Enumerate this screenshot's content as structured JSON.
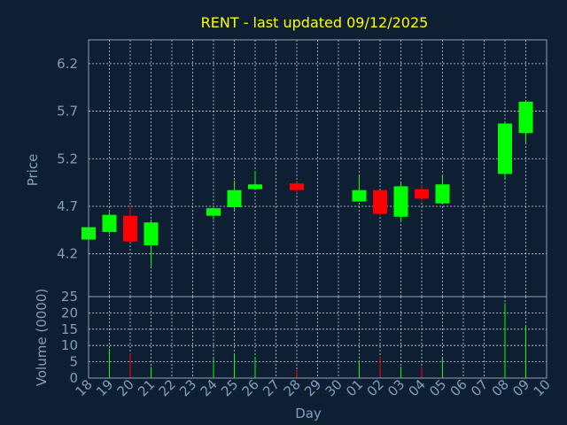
{
  "chart_data": [
    {
      "type": "candlestick",
      "title": "RENT - last updated 09/12/2025",
      "ylabel": "Price",
      "ylim": [
        3.75,
        6.45
      ],
      "yticks": [
        4.2,
        4.7,
        5.2,
        5.7,
        6.2
      ],
      "grid": true,
      "up_color": "#00ff00",
      "down_color": "#ff0000",
      "candles": [
        {
          "day": "18",
          "open": 4.35,
          "high": 4.49,
          "low": 4.33,
          "close": 4.48
        },
        {
          "day": "19",
          "open": 4.43,
          "high": 4.64,
          "low": 4.41,
          "close": 4.61
        },
        {
          "day": "20",
          "open": 4.6,
          "high": 4.71,
          "low": 4.32,
          "close": 4.33
        },
        {
          "day": "21",
          "open": 4.29,
          "high": 4.56,
          "low": 4.07,
          "close": 4.53
        },
        {
          "day": "24",
          "open": 4.6,
          "high": 4.7,
          "low": 4.56,
          "close": 4.68
        },
        {
          "day": "25",
          "open": 4.69,
          "high": 4.97,
          "low": 4.66,
          "close": 4.87
        },
        {
          "day": "26",
          "open": 4.88,
          "high": 5.07,
          "low": 4.88,
          "close": 4.93
        },
        {
          "day": "28",
          "open": 4.94,
          "high": 4.95,
          "low": 4.84,
          "close": 4.87
        },
        {
          "day": "01",
          "open": 4.75,
          "high": 5.02,
          "low": 4.75,
          "close": 4.87
        },
        {
          "day": "02",
          "open": 4.87,
          "high": 4.87,
          "low": 4.6,
          "close": 4.62
        },
        {
          "day": "03",
          "open": 4.59,
          "high": 4.94,
          "low": 4.54,
          "close": 4.91
        },
        {
          "day": "04",
          "open": 4.88,
          "high": 4.93,
          "low": 4.75,
          "close": 4.78
        },
        {
          "day": "05",
          "open": 4.73,
          "high": 5.03,
          "low": 4.72,
          "close": 4.93
        },
        {
          "day": "08",
          "open": 5.04,
          "high": 5.59,
          "low": 4.99,
          "close": 5.57
        },
        {
          "day": "09",
          "open": 5.47,
          "high": 5.81,
          "low": 5.37,
          "close": 5.8
        }
      ]
    },
    {
      "type": "bar",
      "xlabel": "Day",
      "ylabel": "Volume (0000)",
      "ylim": [
        0,
        25
      ],
      "yticks": [
        0,
        5,
        10,
        15,
        20,
        25
      ],
      "grid": true,
      "categories": [
        "18",
        "19",
        "20",
        "21",
        "22",
        "23",
        "24",
        "25",
        "26",
        "27",
        "28",
        "29",
        "30",
        "01",
        "02",
        "03",
        "04",
        "05",
        "06",
        "07",
        "08",
        "09",
        "10"
      ],
      "volumes": [
        {
          "day": "19",
          "value": 9,
          "direction": "up"
        },
        {
          "day": "20",
          "value": 7.5,
          "direction": "down"
        },
        {
          "day": "21",
          "value": 3.5,
          "direction": "up"
        },
        {
          "day": "24",
          "value": 6,
          "direction": "up"
        },
        {
          "day": "25",
          "value": 7.5,
          "direction": "up"
        },
        {
          "day": "26",
          "value": 6.5,
          "direction": "up"
        },
        {
          "day": "28",
          "value": 2.5,
          "direction": "down"
        },
        {
          "day": "01",
          "value": 5.5,
          "direction": "up"
        },
        {
          "day": "02",
          "value": 6.5,
          "direction": "down"
        },
        {
          "day": "03",
          "value": 3.5,
          "direction": "up"
        },
        {
          "day": "04",
          "value": 3.5,
          "direction": "down"
        },
        {
          "day": "05",
          "value": 6,
          "direction": "up"
        },
        {
          "day": "08",
          "value": 23,
          "direction": "up"
        },
        {
          "day": "09",
          "value": 16,
          "direction": "up"
        }
      ]
    }
  ]
}
